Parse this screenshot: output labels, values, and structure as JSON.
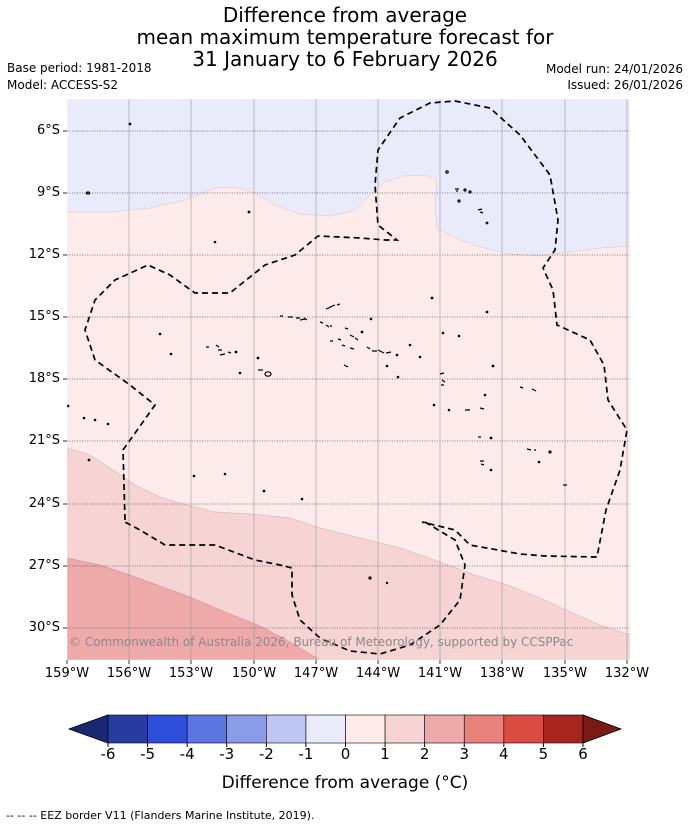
{
  "title": {
    "line1": "Difference from average",
    "line2": "mean maximum temperature forecast for",
    "line3": "31 January to 6 February 2026"
  },
  "meta": {
    "base_period": "Base period: 1981-2018",
    "model": "Model: ACCESS-S2",
    "model_run": "Model run: 24/01/2026",
    "issued": "Issued: 26/01/2026"
  },
  "map": {
    "lat_labels": [
      "6°S",
      "9°S",
      "12°S",
      "15°S",
      "18°S",
      "21°S",
      "24°S",
      "27°S",
      "30°S"
    ],
    "lon_labels": [
      "159°W",
      "156°W",
      "153°W",
      "150°W",
      "147°W",
      "144°W",
      "141°W",
      "138°W",
      "135°W",
      "132°W"
    ],
    "credit": "© Commonwealth of Australia 2026, Bureau of Meteorology, supported by CCSPPac"
  },
  "colorbar": {
    "ticks": [
      "-6",
      "-5",
      "-4",
      "-3",
      "-2",
      "-1",
      "0",
      "1",
      "2",
      "3",
      "4",
      "5",
      "6"
    ],
    "colors": [
      "#283b9e",
      "#2f4ed9",
      "#5c75e0",
      "#8a9be8",
      "#bfc6f2",
      "#e9ebfb",
      "#fcebea",
      "#f5d4d3",
      "#eeaaaa",
      "#e8827d",
      "#da4b42",
      "#a8251e"
    ],
    "under_color": "#1a2872",
    "over_color": "#7a1a14",
    "title": "Difference from average (°C)"
  },
  "colors": {
    "neg_1_0": "#e9ebfb",
    "pos_0_1": "#fcebea",
    "pos_1_2": "#f5d4d3",
    "pos_2_3": "#eeaaaa"
  },
  "footer": "--  --  -- EEZ border V11 (Flanders Marine Institute, 2019)."
}
